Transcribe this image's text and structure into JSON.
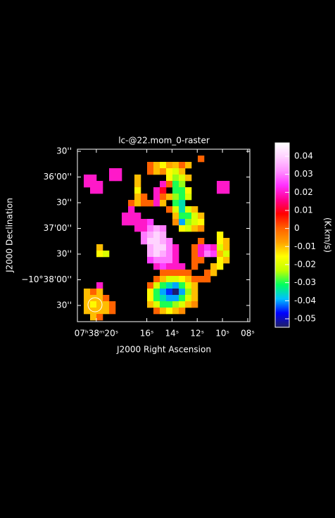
{
  "chart_data": {
    "type": "raster",
    "title": "lc-@22.mom_0-raster",
    "xlabel": "J2000 Right Ascension",
    "ylabel": "J2000 Declination",
    "colorbar_label": "(K.km/s)",
    "xlim": [
      21.5,
      7.83
    ],
    "xticks": [
      {
        "value": 20,
        "label": "07ʰ38ᵐ20ˢ"
      },
      {
        "value": 16,
        "label": "16ˢ"
      },
      {
        "value": 14,
        "label": "14ˢ"
      },
      {
        "value": 12,
        "label": "12ˢ"
      },
      {
        "value": 10,
        "label": "10ˢ"
      },
      {
        "value": 8,
        "label": "08ˢ"
      }
    ],
    "ylim": [
      -2328.9,
      -2127.5
    ],
    "yticks": [
      {
        "value": -2130,
        "label": "30''"
      },
      {
        "value": -2160,
        "label": "36'00''"
      },
      {
        "value": -2190,
        "label": "30''"
      },
      {
        "value": -2220,
        "label": "37'00''"
      },
      {
        "value": -2250,
        "label": "30''"
      },
      {
        "value": -2280,
        "label": "−10°38'00''"
      },
      {
        "value": -2310,
        "label": "30''"
      }
    ],
    "zlim": [
      -0.0547,
      0.0474
    ],
    "zticks": [
      0.04,
      0.03,
      0.02,
      0.01,
      0,
      -0.01,
      -0.02,
      -0.03,
      -0.04,
      -0.05
    ],
    "colorscale": [
      "#202060",
      "#0000ff",
      "#00c0ff",
      "#00ff60",
      "#c0ff00",
      "#ffff00",
      "#ffa000",
      "#ff6000",
      "#ff0000",
      "#ff0090",
      "#ff30ff",
      "#ff90ff",
      "#ffd0ff",
      "#ffffff"
    ],
    "rows": [
      [
        null,
        null,
        null,
        null,
        null,
        null,
        null,
        null,
        null,
        null,
        null,
        null,
        null,
        null,
        null,
        null,
        null,
        null,
        null,
        null,
        null,
        null,
        null,
        null,
        null,
        null,
        null
      ],
      [
        null,
        null,
        null,
        null,
        null,
        null,
        null,
        null,
        null,
        null,
        null,
        null,
        null,
        null,
        null,
        null,
        null,
        null,
        null,
        0,
        null,
        null,
        null,
        null,
        null,
        null,
        null
      ],
      [
        null,
        null,
        null,
        null,
        null,
        null,
        null,
        null,
        null,
        null,
        null,
        0,
        -0.01,
        -0.015,
        -0.008,
        -0.01,
        0,
        -0.01,
        null,
        null,
        null,
        null,
        null,
        null,
        null,
        null,
        null
      ],
      [
        null,
        null,
        null,
        null,
        null,
        0.02,
        0.02,
        null,
        null,
        null,
        null,
        0,
        -0.01,
        -0.005,
        -0.015,
        -0.02,
        -0.01,
        null,
        null,
        null,
        null,
        null,
        null,
        null,
        null,
        null,
        null
      ],
      [
        null,
        0.02,
        0.02,
        null,
        null,
        0.02,
        0.02,
        null,
        null,
        -0.01,
        null,
        null,
        null,
        null,
        -0.015,
        -0.025,
        -0.02,
        -0.01,
        null,
        null,
        null,
        null,
        null,
        null,
        null,
        null,
        null
      ],
      [
        null,
        0.02,
        0.02,
        0.02,
        null,
        null,
        null,
        null,
        null,
        -0.01,
        null,
        null,
        null,
        0.02,
        0,
        -0.03,
        -0.025,
        null,
        null,
        null,
        null,
        null,
        0.02,
        0.02,
        null,
        null,
        null
      ],
      [
        null,
        null,
        0.02,
        0.02,
        null,
        null,
        null,
        null,
        null,
        -0.015,
        null,
        null,
        0.02,
        0.01,
        null,
        -0.03,
        -0.03,
        -0.015,
        null,
        null,
        null,
        null,
        0.02,
        0.02,
        null,
        null,
        null
      ],
      [
        null,
        null,
        null,
        null,
        null,
        null,
        null,
        null,
        null,
        -0.01,
        0,
        null,
        0.02,
        0,
        -0.01,
        -0.025,
        -0.03,
        -0.02,
        null,
        null,
        null,
        null,
        null,
        null,
        null,
        null,
        null
      ],
      [
        null,
        null,
        null,
        null,
        null,
        null,
        null,
        null,
        0,
        -0.01,
        0,
        0,
        0.02,
        -0.01,
        null,
        -0.03,
        -0.035,
        null,
        null,
        null,
        null,
        null,
        null,
        null,
        null,
        null,
        null
      ],
      [
        null,
        null,
        null,
        null,
        null,
        null,
        null,
        null,
        0.02,
        null,
        null,
        null,
        null,
        null,
        0,
        -0.02,
        -0.035,
        -0.02,
        -0.01,
        null,
        null,
        null,
        null,
        null,
        null,
        null,
        null
      ],
      [
        null,
        null,
        null,
        null,
        null,
        null,
        null,
        0.02,
        0.02,
        0.02,
        null,
        null,
        null,
        null,
        null,
        -0.01,
        -0.03,
        -0.03,
        -0.02,
        -0.01,
        null,
        null,
        null,
        null,
        null,
        null,
        null
      ],
      [
        null,
        null,
        null,
        null,
        null,
        null,
        null,
        0.02,
        0.02,
        0.02,
        0.02,
        0.025,
        null,
        null,
        null,
        -0.005,
        -0.04,
        -0.025,
        -0.02,
        -0.015,
        null,
        null,
        null,
        null,
        null,
        null,
        null
      ],
      [
        null,
        null,
        null,
        null,
        null,
        null,
        null,
        null,
        null,
        0.02,
        0.02,
        0.03,
        0.035,
        0.03,
        null,
        null,
        -0.015,
        -0.02,
        -0.01,
        -0.005,
        null,
        null,
        null,
        null,
        null,
        null,
        null
      ],
      [
        null,
        null,
        null,
        null,
        null,
        null,
        null,
        null,
        null,
        null,
        0.03,
        0.035,
        0.04,
        0.035,
        null,
        null,
        null,
        null,
        null,
        null,
        null,
        null,
        -0.015,
        null,
        null,
        null,
        null
      ],
      [
        null,
        null,
        null,
        null,
        null,
        null,
        null,
        null,
        null,
        null,
        0.03,
        0.04,
        0.04,
        0.035,
        0.03,
        null,
        null,
        null,
        null,
        0,
        null,
        null,
        -0.015,
        -0.01,
        null,
        null,
        null
      ],
      [
        null,
        null,
        null,
        -0.01,
        null,
        null,
        null,
        null,
        null,
        null,
        null,
        0.035,
        0.04,
        0.04,
        0.03,
        0.02,
        null,
        null,
        0,
        0.02,
        0.025,
        0.02,
        -0.02,
        -0.01,
        null,
        null,
        null
      ],
      [
        null,
        null,
        null,
        -0.015,
        -0.02,
        null,
        null,
        null,
        null,
        null,
        null,
        0.035,
        0.04,
        0.035,
        0.03,
        0.02,
        null,
        null,
        0,
        0.02,
        0.03,
        0.025,
        -0.01,
        -0.02,
        null,
        null,
        null
      ],
      [
        null,
        null,
        null,
        null,
        null,
        null,
        null,
        null,
        null,
        null,
        null,
        0.025,
        0.03,
        0.03,
        0.03,
        0.02,
        null,
        null,
        0,
        0,
        null,
        null,
        -0.015,
        -0.01,
        null,
        null,
        null
      ],
      [
        null,
        null,
        null,
        null,
        null,
        null,
        null,
        null,
        null,
        null,
        null,
        null,
        0.02,
        0.025,
        0.02,
        0.02,
        0.02,
        null,
        0,
        null,
        null,
        -0.01,
        -0.015,
        null,
        null,
        null,
        null
      ],
      [
        null,
        null,
        null,
        null,
        null,
        null,
        null,
        null,
        null,
        null,
        null,
        null,
        null,
        0,
        0,
        0,
        0,
        0,
        null,
        null,
        0,
        -0.01,
        null,
        null,
        null,
        null,
        null
      ],
      [
        null,
        null,
        null,
        null,
        null,
        null,
        null,
        null,
        null,
        null,
        null,
        null,
        0,
        -0.01,
        -0.02,
        -0.02,
        -0.015,
        -0.01,
        0,
        0,
        0,
        null,
        null,
        null,
        null,
        null,
        null
      ],
      [
        null,
        null,
        null,
        0.02,
        null,
        null,
        null,
        null,
        null,
        null,
        null,
        0,
        -0.02,
        -0.03,
        -0.035,
        -0.04,
        -0.03,
        -0.02,
        -0.01,
        null,
        null,
        null,
        null,
        null,
        null,
        null,
        null
      ],
      [
        null,
        -0.01,
        0,
        -0.01,
        null,
        null,
        null,
        null,
        null,
        null,
        null,
        -0.015,
        -0.03,
        -0.04,
        -0.045,
        -0.054,
        -0.04,
        -0.025,
        -0.01,
        null,
        null,
        null,
        null,
        null,
        null,
        null,
        null
      ],
      [
        null,
        -0.01,
        -0.01,
        -0.01,
        0,
        null,
        null,
        null,
        null,
        null,
        null,
        -0.015,
        -0.03,
        -0.035,
        -0.04,
        -0.04,
        -0.03,
        -0.02,
        -0.01,
        null,
        null,
        null,
        null,
        null,
        null,
        null,
        null
      ],
      [
        null,
        -0.01,
        -0.015,
        -0.01,
        -0.01,
        0,
        null,
        null,
        null,
        null,
        null,
        -0.01,
        -0.02,
        -0.03,
        -0.03,
        -0.025,
        -0.02,
        -0.01,
        -0.005,
        null,
        null,
        null,
        null,
        null,
        null,
        null,
        null
      ],
      [
        null,
        -0.01,
        -0.01,
        -0.01,
        -0.01,
        0,
        null,
        null,
        null,
        null,
        null,
        null,
        0,
        -0.01,
        -0.015,
        -0.01,
        -0.005,
        null,
        null,
        null,
        null,
        null,
        null,
        null,
        null,
        null,
        null
      ],
      [
        null,
        null,
        -0.01,
        0,
        null,
        null,
        null,
        null,
        null,
        null,
        null,
        null,
        null,
        null,
        null,
        null,
        null,
        null,
        null,
        null,
        null,
        null,
        null,
        null,
        null,
        null,
        null
      ]
    ]
  }
}
